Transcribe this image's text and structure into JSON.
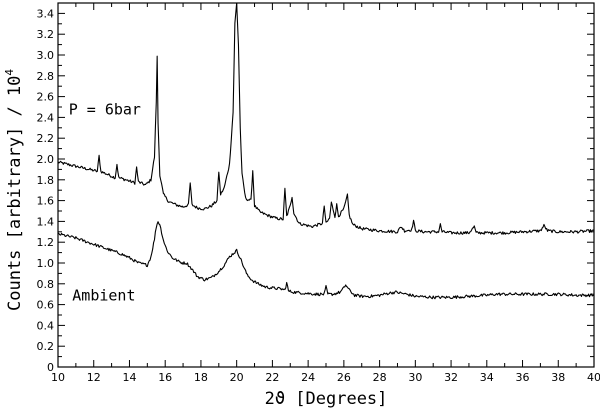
{
  "chart_data": {
    "type": "line",
    "xlabel": "2ϑ [Degrees]",
    "ylabel": "Counts [arbitrary] / 10",
    "ylabel_exponent": "4",
    "xlim": [
      10,
      40
    ],
    "ylim": [
      0,
      3.5
    ],
    "xticks": [
      10,
      12,
      14,
      16,
      18,
      20,
      22,
      24,
      26,
      28,
      30,
      32,
      34,
      36,
      38,
      40
    ],
    "xtick_labels": [
      "10",
      "12",
      "14",
      "16",
      "18",
      "20",
      "22",
      "24",
      "26",
      "28",
      "30",
      "32",
      "34",
      "36",
      "38",
      "40"
    ],
    "yticks": [
      0,
      0.2,
      0.4,
      0.6,
      0.8,
      1.0,
      1.2,
      1.4,
      1.6,
      1.8,
      2.0,
      2.2,
      2.4,
      2.6,
      2.8,
      3.0,
      3.2,
      3.4
    ],
    "ytick_labels": [
      "0",
      "0.2",
      "0.4",
      "0.6",
      "0.8",
      "1.0",
      "1.2",
      "1.4",
      "1.6",
      "1.8",
      "2.0",
      "2.2",
      "2.4",
      "2.6",
      "2.8",
      "3.0",
      "3.2",
      "3.4"
    ],
    "grid": false,
    "annotations": [
      {
        "text": "P = 6bar",
        "x": 10.6,
        "y": 2.43
      },
      {
        "text": "Ambient",
        "x": 10.8,
        "y": 0.64
      }
    ],
    "series": [
      {
        "label": "P = 6bar",
        "x": [
          10.0,
          10.5,
          11.0,
          11.5,
          12.0,
          12.2,
          12.3,
          12.4,
          12.8,
          13.2,
          13.3,
          13.4,
          13.8,
          14.3,
          14.4,
          14.5,
          14.9,
          15.2,
          15.4,
          15.5,
          15.55,
          15.6,
          15.7,
          15.9,
          16.2,
          16.6,
          17.0,
          17.3,
          17.4,
          17.5,
          17.8,
          18.2,
          18.6,
          18.9,
          19.0,
          19.1,
          19.3,
          19.6,
          19.8,
          19.9,
          20.0,
          20.1,
          20.2,
          20.3,
          20.5,
          20.8,
          20.9,
          21.0,
          21.3,
          21.7,
          22.2,
          22.6,
          22.7,
          22.8,
          23.0,
          23.1,
          23.2,
          23.5,
          24.2,
          24.8,
          24.9,
          25.0,
          25.2,
          25.3,
          25.5,
          25.6,
          25.7,
          26.0,
          26.2,
          26.3,
          26.5,
          27.0,
          28.0,
          29.0,
          29.2,
          29.4,
          29.8,
          29.9,
          30.0,
          30.5,
          31.3,
          31.4,
          31.5,
          32.0,
          33.0,
          33.3,
          33.4,
          33.5,
          34.0,
          35.0,
          36.0,
          37.0,
          37.2,
          37.4,
          38.0,
          39.0,
          40.0
        ],
        "y": [
          1.97,
          1.95,
          1.93,
          1.91,
          1.89,
          1.88,
          2.03,
          1.88,
          1.85,
          1.82,
          1.95,
          1.82,
          1.8,
          1.77,
          1.92,
          1.78,
          1.75,
          1.8,
          2.02,
          2.55,
          2.98,
          2.35,
          1.85,
          1.66,
          1.59,
          1.56,
          1.54,
          1.56,
          1.77,
          1.56,
          1.53,
          1.52,
          1.55,
          1.6,
          1.88,
          1.66,
          1.72,
          1.95,
          2.45,
          3.3,
          3.5,
          3.1,
          2.3,
          1.85,
          1.62,
          1.6,
          1.89,
          1.55,
          1.49,
          1.46,
          1.43,
          1.42,
          1.71,
          1.45,
          1.55,
          1.64,
          1.48,
          1.38,
          1.35,
          1.38,
          1.55,
          1.38,
          1.43,
          1.58,
          1.45,
          1.56,
          1.45,
          1.52,
          1.65,
          1.46,
          1.37,
          1.33,
          1.31,
          1.3,
          1.35,
          1.31,
          1.32,
          1.41,
          1.31,
          1.3,
          1.3,
          1.37,
          1.3,
          1.29,
          1.29,
          1.35,
          1.29,
          1.29,
          1.29,
          1.29,
          1.3,
          1.31,
          1.36,
          1.31,
          1.3,
          1.3,
          1.31
        ]
      },
      {
        "label": "Ambient",
        "x": [
          10.0,
          10.5,
          11.0,
          11.5,
          12.0,
          12.5,
          13.0,
          13.5,
          14.0,
          14.5,
          15.0,
          15.2,
          15.4,
          15.5,
          15.6,
          15.7,
          15.9,
          16.1,
          16.4,
          16.8,
          17.0,
          17.2,
          17.5,
          17.8,
          18.2,
          18.6,
          19.0,
          19.3,
          19.6,
          19.8,
          20.0,
          20.2,
          20.4,
          20.6,
          20.9,
          21.2,
          21.6,
          22.0,
          22.5,
          22.7,
          22.8,
          22.9,
          23.2,
          23.8,
          24.5,
          24.9,
          25.0,
          25.1,
          25.4,
          25.8,
          26.0,
          26.1,
          26.3,
          26.6,
          27.0,
          27.5,
          28.0,
          28.5,
          28.9,
          29.5,
          30.0,
          31.0,
          32.0,
          33.0,
          34.0,
          34.5,
          35.0,
          36.0,
          37.0,
          38.0,
          39.0,
          40.0
        ],
        "y": [
          1.28,
          1.26,
          1.24,
          1.21,
          1.18,
          1.15,
          1.12,
          1.09,
          1.05,
          1.0,
          0.98,
          1.06,
          1.23,
          1.35,
          1.4,
          1.37,
          1.22,
          1.12,
          1.05,
          1.01,
          1.0,
          1.0,
          0.94,
          0.87,
          0.84,
          0.86,
          0.92,
          0.98,
          1.06,
          1.09,
          1.12,
          1.05,
          0.96,
          0.88,
          0.83,
          0.8,
          0.77,
          0.76,
          0.75,
          0.74,
          0.81,
          0.73,
          0.72,
          0.71,
          0.7,
          0.7,
          0.77,
          0.7,
          0.7,
          0.72,
          0.76,
          0.79,
          0.74,
          0.69,
          0.68,
          0.68,
          0.69,
          0.71,
          0.72,
          0.7,
          0.68,
          0.67,
          0.67,
          0.68,
          0.69,
          0.7,
          0.7,
          0.7,
          0.7,
          0.7,
          0.69,
          0.69
        ]
      }
    ]
  }
}
